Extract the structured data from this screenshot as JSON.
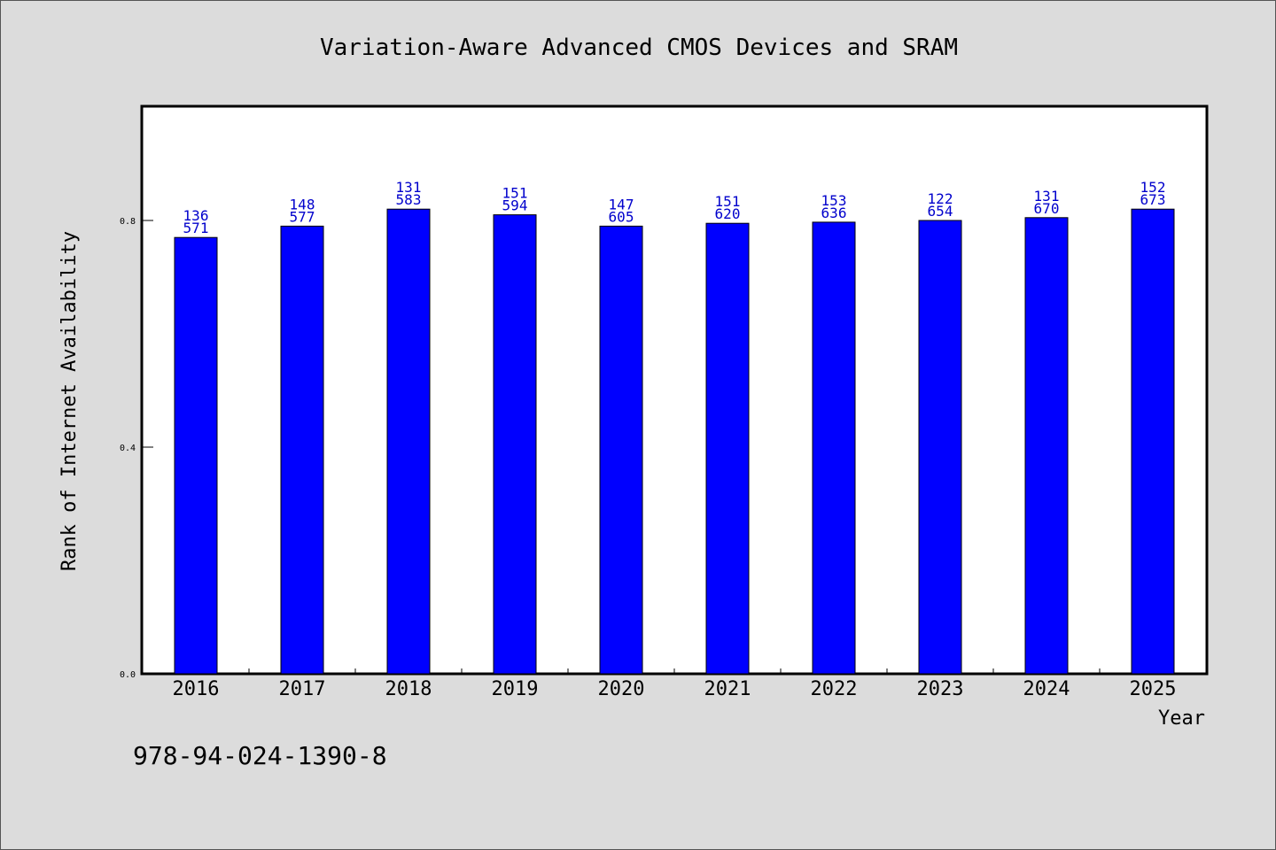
{
  "chart_data": {
    "type": "bar",
    "title": "Variation-Aware Advanced CMOS Devices and SRAM",
    "xlabel": "Year",
    "ylabel": "Rank of Internet Availability",
    "categories": [
      "2016",
      "2017",
      "2018",
      "2019",
      "2020",
      "2021",
      "2022",
      "2023",
      "2024",
      "2025"
    ],
    "values": [
      0.77,
      0.79,
      0.82,
      0.81,
      0.79,
      0.795,
      0.797,
      0.8,
      0.805,
      0.82
    ],
    "labels_top": [
      "136",
      "148",
      "131",
      "151",
      "147",
      "151",
      "153",
      "122",
      "131",
      "152"
    ],
    "labels_bottom": [
      "571",
      "577",
      "583",
      "594",
      "605",
      "620",
      "636",
      "654",
      "670",
      "673"
    ],
    "yticks": [
      "0.0",
      "0.4",
      "0.8"
    ],
    "ylim": [
      0,
      1.0
    ],
    "bar_color": "#0000ff",
    "label_color": "#0000cc",
    "grid": false
  },
  "footer_text": "978-94-024-1390-8"
}
